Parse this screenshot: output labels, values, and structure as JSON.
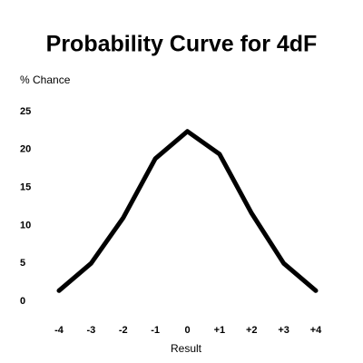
{
  "chart_data": {
    "type": "line",
    "title": "Probability Curve for 4dF",
    "y_label": "% Chance",
    "x_label": "Result",
    "categories": [
      "-4",
      "-3",
      "-2",
      "-1",
      "0",
      "+1",
      "+2",
      "+3",
      "+4"
    ],
    "values": [
      1.4,
      5,
      11,
      18.8,
      22.4,
      19.4,
      11.6,
      5,
      1.4
    ],
    "color": "#000000",
    "ylim": [
      0,
      25
    ],
    "yticks": [
      0,
      5,
      10,
      15,
      20,
      25
    ],
    "grid": false
  }
}
